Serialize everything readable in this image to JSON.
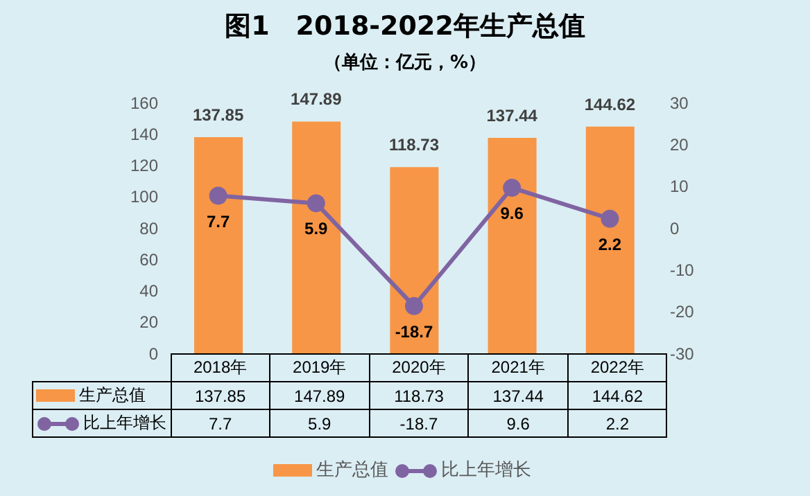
{
  "chart_data": {
    "type": "bar",
    "title": "图1　2018-2022年生产总值",
    "subtitle": "（单位：亿元，%）",
    "categories": [
      "2018年",
      "2019年",
      "2020年",
      "2021年",
      "2022年"
    ],
    "series": [
      {
        "name": "生产总值",
        "color": "#f79646",
        "values": [
          137.85,
          147.89,
          118.73,
          137.44,
          144.62
        ]
      },
      {
        "name": "比上年增长",
        "type": "line",
        "axis": "y2",
        "color": "#8064a2",
        "values": [
          7.7,
          5.9,
          -18.7,
          9.6,
          2.2
        ]
      }
    ],
    "annotations": [
      {
        "text": "137.85",
        "x": "2018年",
        "y": 137.85
      },
      {
        "text": "147.89",
        "x": "2019年",
        "y": 147.89
      },
      {
        "text": "118.73",
        "x": "2020年",
        "y": 118.73
      },
      {
        "text": "137.44",
        "x": "2021年",
        "y": 137.44
      },
      {
        "text": "144.62",
        "x": "2022年",
        "y": 144.62
      },
      "7.7",
      "5.9",
      "-18.7",
      "9.6",
      "2.2"
    ],
    "ylim": [
      0,
      160
    ],
    "yticks": [
      0,
      20,
      40,
      60,
      80,
      100,
      120,
      140,
      160
    ],
    "y2lim": [
      -30,
      30
    ],
    "y2ticks": [
      -30,
      -20,
      -10,
      0,
      10,
      20,
      30
    ],
    "data_labels": true,
    "grid": false,
    "legend": "bottom",
    "marker": "circle"
  }
}
